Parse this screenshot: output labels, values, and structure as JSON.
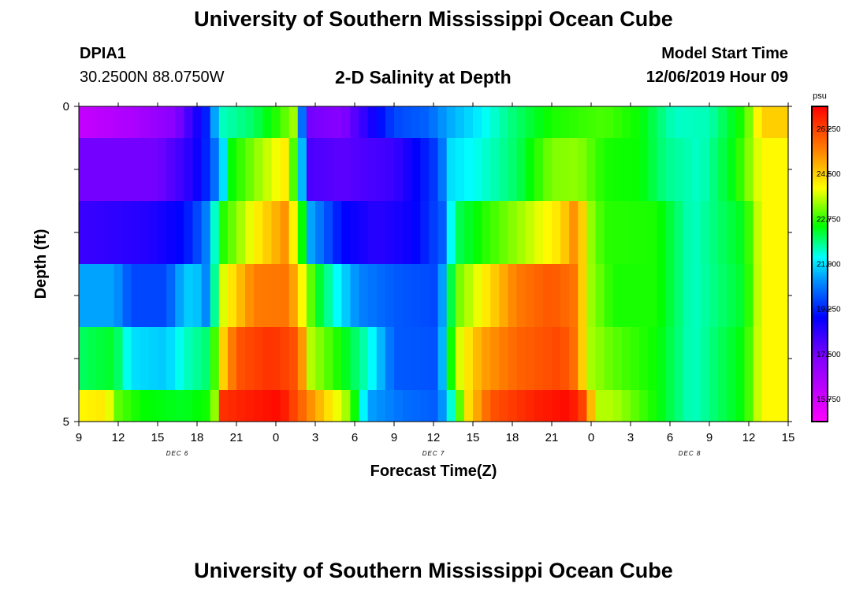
{
  "header": {
    "title": "University of Southern Mississippi Ocean Cube",
    "station_id": "DPIA1",
    "station_coords": "30.2500N 88.0750W",
    "plot_title": "2-D Salinity at Depth",
    "model_start_label": "Model Start Time",
    "model_start_value": "12/06/2019 Hour 09"
  },
  "footer": {
    "title": "University of Southern Mississippi Ocean Cube"
  },
  "chart_data": {
    "type": "heatmap",
    "title": "2-D Salinity at Depth",
    "xlabel": "Forecast Time(Z)",
    "ylabel": "Depth (ft)",
    "x_tick_labels": [
      "9",
      "12",
      "15",
      "18",
      "21",
      "0",
      "3",
      "6",
      "9",
      "12",
      "15",
      "18",
      "21",
      "0",
      "3",
      "6",
      "9",
      "12",
      "15"
    ],
    "y_tick_labels": [
      "0",
      "5"
    ],
    "ylim": [
      0,
      5
    ],
    "date_labels": [
      "DEC 6",
      "DEC 7",
      "DEC 8"
    ],
    "colorbar": {
      "unit": "psu",
      "range": [
        14.875,
        27.125
      ],
      "tick_labels": [
        "15.750",
        "17.500",
        "19.250",
        "21.000",
        "22.750",
        "24.500",
        "26.250"
      ],
      "tick_values": [
        15.75,
        17.5,
        19.25,
        21.0,
        22.75,
        24.5,
        26.25
      ]
    },
    "colors": {
      "low": "#ff00ff",
      "mid": "#00ff00",
      "high": "#ff0000"
    },
    "rows": [
      {
        "depth_range": [
          0,
          0.5
        ],
        "anchors": [
          [
            0,
            16.0
          ],
          [
            6,
            16.5
          ],
          [
            11,
            17.2
          ],
          [
            15,
            19.5
          ],
          [
            16,
            21.5
          ],
          [
            20,
            22.0
          ],
          [
            23,
            22.8
          ],
          [
            24.8,
            23.5
          ],
          [
            25.5,
            20.0
          ],
          [
            26.5,
            17.5
          ],
          [
            30,
            17.2
          ],
          [
            33,
            18.5
          ],
          [
            36,
            19.6
          ],
          [
            40,
            19.9
          ],
          [
            42,
            20.5
          ],
          [
            45,
            21.0
          ],
          [
            49,
            21.8
          ],
          [
            54,
            22.6
          ],
          [
            60,
            22.9
          ],
          [
            64,
            22.5
          ],
          [
            68,
            21.5
          ],
          [
            72,
            21.6
          ],
          [
            76,
            22.7
          ],
          [
            78,
            24.5
          ]
        ]
      },
      {
        "depth_range": [
          0.5,
          1.5
        ],
        "anchors": [
          [
            0,
            17.5
          ],
          [
            9,
            17.5
          ],
          [
            13,
            18.5
          ],
          [
            15,
            19.5
          ],
          [
            16.5,
            21.0
          ],
          [
            17.5,
            22.5
          ],
          [
            21,
            23.5
          ],
          [
            23.8,
            24.2
          ],
          [
            25,
            22.0
          ],
          [
            26.5,
            18.0
          ],
          [
            30,
            17.8
          ],
          [
            36,
            18.2
          ],
          [
            41,
            19.6
          ],
          [
            42.5,
            21.0
          ],
          [
            46,
            21.4
          ],
          [
            50,
            22.0
          ],
          [
            54,
            23.2
          ],
          [
            57,
            23.3
          ],
          [
            60,
            22.6
          ],
          [
            64,
            22.5
          ],
          [
            67,
            21.8
          ],
          [
            71,
            21.5
          ],
          [
            75,
            22.5
          ],
          [
            78,
            24.0
          ]
        ]
      },
      {
        "depth_range": [
          1.5,
          2.5
        ],
        "anchors": [
          [
            0,
            18.2
          ],
          [
            8,
            18.5
          ],
          [
            12,
            19.0
          ],
          [
            14,
            19.8
          ],
          [
            15,
            20.5
          ],
          [
            16,
            22.5
          ],
          [
            20,
            24.0
          ],
          [
            23.5,
            25.2
          ],
          [
            25,
            23.5
          ],
          [
            26.5,
            20.5
          ],
          [
            30,
            19.0
          ],
          [
            34,
            18.4
          ],
          [
            38,
            18.8
          ],
          [
            41.5,
            19.8
          ],
          [
            43,
            22.0
          ],
          [
            47,
            22.8
          ],
          [
            51,
            23.5
          ],
          [
            55,
            24.3
          ],
          [
            57,
            25.5
          ],
          [
            58,
            23.5
          ],
          [
            60,
            22.7
          ],
          [
            66,
            22.6
          ],
          [
            70,
            21.5
          ],
          [
            76,
            22.4
          ],
          [
            78,
            24.0
          ]
        ]
      },
      {
        "depth_range": [
          2.5,
          3.5
        ],
        "anchors": [
          [
            0,
            20.5
          ],
          [
            4,
            20.5
          ],
          [
            6,
            19.6
          ],
          [
            10,
            19.6
          ],
          [
            11.5,
            20.5
          ],
          [
            13,
            21.0
          ],
          [
            15,
            20.0
          ],
          [
            16,
            23.5
          ],
          [
            20,
            25.5
          ],
          [
            24,
            25.6
          ],
          [
            25,
            24.5
          ],
          [
            27,
            22.5
          ],
          [
            30,
            21.0
          ],
          [
            32,
            20.2
          ],
          [
            36,
            19.8
          ],
          [
            41,
            19.6
          ],
          [
            43,
            23.0
          ],
          [
            46,
            24.0
          ],
          [
            50,
            25.5
          ],
          [
            54,
            26.0
          ],
          [
            57,
            25.5
          ],
          [
            58,
            23.5
          ],
          [
            61,
            22.6
          ],
          [
            66,
            22.6
          ],
          [
            70,
            21.5
          ],
          [
            76,
            22.3
          ],
          [
            78,
            24.0
          ]
        ]
      },
      {
        "depth_range": [
          3.5,
          4.5
        ],
        "anchors": [
          [
            0,
            22.0
          ],
          [
            4,
            22.3
          ],
          [
            6,
            21.0
          ],
          [
            10,
            20.8
          ],
          [
            12,
            21.5
          ],
          [
            15,
            22.0
          ],
          [
            16.5,
            24.5
          ],
          [
            18,
            26.0
          ],
          [
            22,
            26.5
          ],
          [
            25,
            26.0
          ],
          [
            26.5,
            23.5
          ],
          [
            30,
            22.5
          ],
          [
            33,
            21.5
          ],
          [
            36,
            19.8
          ],
          [
            41,
            19.7
          ],
          [
            43,
            23.5
          ],
          [
            46,
            25.0
          ],
          [
            50,
            25.8
          ],
          [
            55,
            26.2
          ],
          [
            57,
            25.5
          ],
          [
            58,
            23.5
          ],
          [
            61,
            23.0
          ],
          [
            66,
            22.5
          ],
          [
            70,
            21.5
          ],
          [
            76,
            22.5
          ],
          [
            78,
            24.0
          ]
        ]
      },
      {
        "depth_range": [
          4.5,
          5
        ],
        "anchors": [
          [
            0,
            24.0
          ],
          [
            3,
            24.2
          ],
          [
            4.5,
            23.0
          ],
          [
            7,
            22.5
          ],
          [
            12,
            22.3
          ],
          [
            15,
            22.6
          ],
          [
            16,
            24.0
          ],
          [
            16.5,
            26.5
          ],
          [
            20,
            26.8
          ],
          [
            23,
            27.0
          ],
          [
            25,
            26.0
          ],
          [
            28,
            24.5
          ],
          [
            31,
            23.2
          ],
          [
            33,
            20.5
          ],
          [
            37,
            20.0
          ],
          [
            41,
            19.8
          ],
          [
            43,
            22.0
          ],
          [
            44,
            24.0
          ],
          [
            47,
            26.0
          ],
          [
            52,
            26.7
          ],
          [
            56,
            27.0
          ],
          [
            58,
            26.0
          ],
          [
            59,
            23.5
          ],
          [
            61,
            23.5
          ],
          [
            66,
            22.5
          ],
          [
            70,
            21.5
          ],
          [
            76,
            22.5
          ],
          [
            78,
            24.0
          ]
        ]
      }
    ]
  }
}
